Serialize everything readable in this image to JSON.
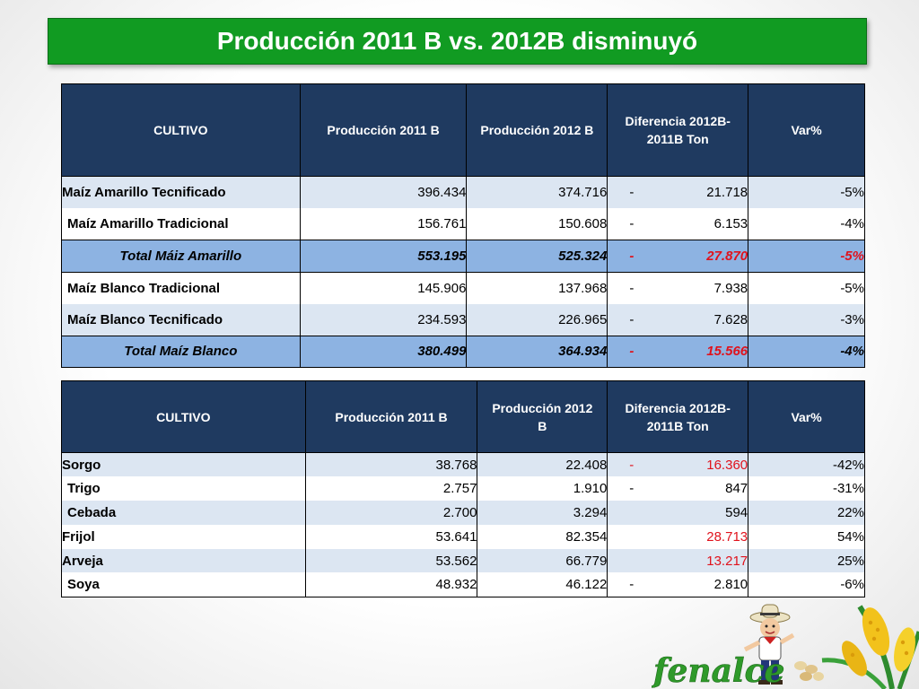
{
  "title": "Producción 2011 B vs. 2012B  disminuyó",
  "table1": {
    "headers": [
      "CULTIVO",
      "Producción  2011 B",
      "Producción  2012 B",
      "Diferencia 2012B-",
      "2011B Ton",
      "Var%"
    ],
    "rows": [
      {
        "cultivo": "Maíz Amarillo Tecnificado",
        "p2011": "396.434",
        "p2012": "374.716",
        "sign": "-",
        "diff": "21.718",
        "var": "-5%"
      },
      {
        "cultivo": "Maíz Amarillo Tradicional",
        "p2011": "156.761",
        "p2012": "150.608",
        "sign": "-",
        "diff": "6.153",
        "var": "-4%"
      },
      {
        "cultivo": "Total Máiz Amarillo",
        "p2011": "553.195",
        "p2012": "525.324",
        "sign": "-",
        "diff": "27.870",
        "var": "-5%"
      },
      {
        "cultivo": "Maíz Blanco Tradicional",
        "p2011": "145.906",
        "p2012": "137.968",
        "sign": "-",
        "diff": "7.938",
        "var": "-5%"
      },
      {
        "cultivo": "Maíz Blanco  Tecnificado",
        "p2011": "234.593",
        "p2012": "226.965",
        "sign": "-",
        "diff": "7.628",
        "var": "-3%"
      },
      {
        "cultivo": "Total Maíz Blanco",
        "p2011": "380.499",
        "p2012": "364.934",
        "sign": "-",
        "diff": "15.566",
        "var": "-4%"
      }
    ]
  },
  "table2": {
    "headers": [
      "CULTIVO",
      "Producción  2011 B",
      "Producción  2012",
      "B",
      "Diferencia 2012B-",
      "2011B Ton",
      "Var%"
    ],
    "rows": [
      {
        "cultivo": "Sorgo",
        "p2011": "38.768",
        "p2012": "22.408",
        "sign": "-",
        "diff": "16.360",
        "var": "-42%"
      },
      {
        "cultivo": "Trigo",
        "p2011": "2.757",
        "p2012": "1.910",
        "sign": "-",
        "diff": "847",
        "var": "-31%"
      },
      {
        "cultivo": "Cebada",
        "p2011": "2.700",
        "p2012": "3.294",
        "sign": "",
        "diff": "594",
        "var": "22%"
      },
      {
        "cultivo": "Frijol",
        "p2011": "53.641",
        "p2012": "82.354",
        "sign": "",
        "diff": "28.713",
        "var": "54%"
      },
      {
        "cultivo": "Arveja",
        "p2011": "53.562",
        "p2012": "66.779",
        "sign": "",
        "diff": "13.217",
        "var": "25%"
      },
      {
        "cultivo": "Soya",
        "p2011": "48.932",
        "p2012": "46.122",
        "sign": "-",
        "diff": "2.810",
        "var": "-6%"
      }
    ]
  },
  "logo": {
    "text": "fenalce"
  },
  "colors": {
    "banner": "#119b22",
    "header": "#1f3a60",
    "total_row": "#8db3e2",
    "shaded_row": "#dce6f2",
    "negative": "#e0121c"
  }
}
